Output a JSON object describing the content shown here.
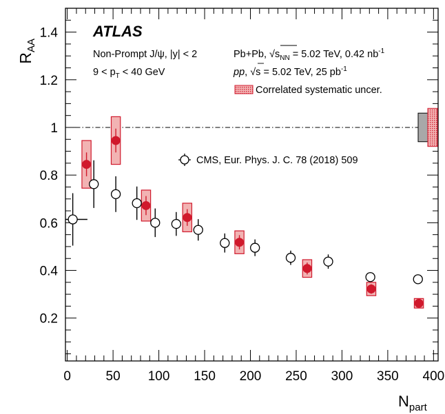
{
  "chart_data": {
    "type": "scatter",
    "experiment": "ATLAS",
    "xlabel": "N",
    "xlabel_sub": "part",
    "ylabel": "R",
    "ylabel_sub": "AA",
    "xlim": [
      -2,
      405
    ],
    "ylim": [
      0.02,
      1.5
    ],
    "x_ticks": [
      0,
      50,
      100,
      150,
      200,
      250,
      300,
      350,
      400
    ],
    "y_ticks": [
      0.2,
      0.4,
      0.6,
      0.8,
      1.0,
      1.2,
      1.4
    ],
    "y_tick_labels": [
      "0.2",
      "0.4",
      "0.6",
      "0.8",
      "1",
      "1.2",
      "1.4"
    ],
    "reference_line": 1.0,
    "legend_text": {
      "process": "Non-Prompt J/ψ, |y| < 2",
      "pt_pre": "9 < p",
      "pt_sub": "T",
      "pt_post": " < 40 GeV",
      "pbpb_pre": "Pb+Pb, ",
      "pbpb_rad": "√",
      "pbpb_s": "s",
      "pbpb_sub": "NN",
      "pbpb_post": " = 5.02 TeV, 0.42 nb",
      "pbpb_sup": "-1",
      "pp_pre": "pp",
      "pp_comma": ", ",
      "pp_rad": "√",
      "pp_s": "s",
      "pp_post": " = 5.02 TeV, 25 pb",
      "pp_sup": "-1",
      "corr_syst": "Correlated systematic uncer.",
      "cms": "CMS, Eur. Phys. J. C. 78 (2018) 509"
    },
    "series": [
      {
        "name": "ATLAS",
        "color": "#d0192c",
        "points": [
          {
            "x": 21,
            "y": 0.845,
            "stat": 0.05,
            "syst": 0.1,
            "bw": 5
          },
          {
            "x": 53,
            "y": 0.945,
            "stat": 0.05,
            "syst": 0.1,
            "bw": 5
          },
          {
            "x": 86,
            "y": 0.672,
            "stat": 0.04,
            "syst": 0.065,
            "bw": 5
          },
          {
            "x": 131,
            "y": 0.622,
            "stat": 0.035,
            "syst": 0.06,
            "bw": 5
          },
          {
            "x": 188,
            "y": 0.518,
            "stat": 0.03,
            "syst": 0.048,
            "bw": 5
          },
          {
            "x": 262,
            "y": 0.408,
            "stat": 0.025,
            "syst": 0.037,
            "bw": 5
          },
          {
            "x": 332,
            "y": 0.322,
            "stat": 0.02,
            "syst": 0.028,
            "bw": 5
          },
          {
            "x": 384,
            "y": 0.262,
            "stat": 0.015,
            "syst": 0.02,
            "bw": 5
          }
        ]
      },
      {
        "name": "CMS, Eur. Phys. J. C. 78 (2018) 509",
        "color": "#000000",
        "points": [
          {
            "x": 6,
            "y": 0.614,
            "ey": 0.11,
            "ex": 16
          },
          {
            "x": 29,
            "y": 0.762,
            "ey": 0.1
          },
          {
            "x": 53,
            "y": 0.72,
            "ey": 0.075
          },
          {
            "x": 76,
            "y": 0.682,
            "ey": 0.07
          },
          {
            "x": 96,
            "y": 0.6,
            "ey": 0.06
          },
          {
            "x": 119,
            "y": 0.595,
            "ey": 0.05
          },
          {
            "x": 143,
            "y": 0.57,
            "ey": 0.045
          },
          {
            "x": 172,
            "y": 0.515,
            "ey": 0.04
          },
          {
            "x": 205,
            "y": 0.495,
            "ey": 0.035
          },
          {
            "x": 244,
            "y": 0.453,
            "ey": 0.03
          },
          {
            "x": 285,
            "y": 0.437,
            "ey": 0.03
          },
          {
            "x": 331,
            "y": 0.372,
            "ey": 0.02
          },
          {
            "x": 383,
            "y": 0.363,
            "ey": 0.02
          }
        ]
      }
    ],
    "global_uncertainty": [
      {
        "name": "grey",
        "color": "#a8a8a8",
        "low": 0.94,
        "high": 1.06
      },
      {
        "name": "red",
        "color": "#e9a0a0",
        "low": 0.92,
        "high": 1.08
      }
    ]
  }
}
